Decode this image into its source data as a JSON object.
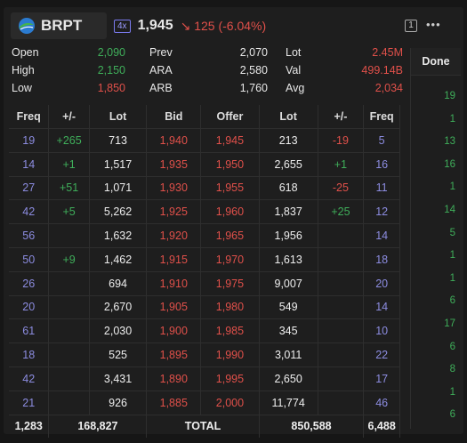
{
  "header": {
    "ticker": "BRPT",
    "leverage": "4x",
    "price": "1,945",
    "change": "125 (-6.04%)",
    "notifications": "1",
    "menu": "•••"
  },
  "stats": [
    [
      {
        "label": "Open",
        "value": "2,090"
      },
      {
        "label": "Prev",
        "value": "2,070"
      },
      {
        "label": "Lot",
        "value": "2.45M"
      }
    ],
    [
      {
        "label": "High",
        "value": "2,150"
      },
      {
        "label": "ARA",
        "value": "2,580"
      },
      {
        "label": "Val",
        "value": "499.14B"
      }
    ],
    [
      {
        "label": "Low",
        "value": "1,850"
      },
      {
        "label": "ARB",
        "value": "1,760"
      },
      {
        "label": "Avg",
        "value": "2,034"
      }
    ]
  ],
  "table": {
    "columns": [
      "Freq",
      "+/-",
      "Lot",
      "Bid",
      "Offer",
      "Lot",
      "+/-",
      "Freq"
    ],
    "rows": [
      [
        "19",
        "+265",
        "713",
        "1,940",
        "1,945",
        "213",
        "-19",
        "5"
      ],
      [
        "14",
        "+1",
        "1,517",
        "1,935",
        "1,950",
        "2,655",
        "+1",
        "16"
      ],
      [
        "27",
        "+51",
        "1,071",
        "1,930",
        "1,955",
        "618",
        "-25",
        "11"
      ],
      [
        "42",
        "+5",
        "5,262",
        "1,925",
        "1,960",
        "1,837",
        "+25",
        "12"
      ],
      [
        "56",
        null,
        "1,632",
        "1,920",
        "1,965",
        "1,956",
        null,
        "14"
      ],
      [
        "50",
        "+9",
        "1,462",
        "1,915",
        "1,970",
        "1,613",
        null,
        "18"
      ],
      [
        "26",
        null,
        "694",
        "1,910",
        "1,975",
        "9,007",
        null,
        "20"
      ],
      [
        "20",
        null,
        "2,670",
        "1,905",
        "1,980",
        "549",
        null,
        "14"
      ],
      [
        "61",
        null,
        "2,030",
        "1,900",
        "1,985",
        "345",
        null,
        "10"
      ],
      [
        "18",
        null,
        "525",
        "1,895",
        "1,990",
        "3,011",
        null,
        "22"
      ],
      [
        "42",
        null,
        "3,431",
        "1,890",
        "1,995",
        "2,650",
        null,
        "17"
      ],
      [
        "21",
        null,
        "926",
        "1,885",
        "2,000",
        "11,774",
        null,
        "46"
      ]
    ],
    "totals": {
      "bid_freq": "1,283",
      "bid_lot": "168,827",
      "label": "TOTAL",
      "offer_lot": "850,588",
      "offer_freq": "6,488"
    }
  },
  "done": {
    "title": "Done",
    "values": [
      "19",
      "1",
      "13",
      "16",
      "1",
      "14",
      "5",
      "1",
      "1",
      "6",
      "17",
      "6",
      "8",
      "1",
      "6"
    ]
  }
}
